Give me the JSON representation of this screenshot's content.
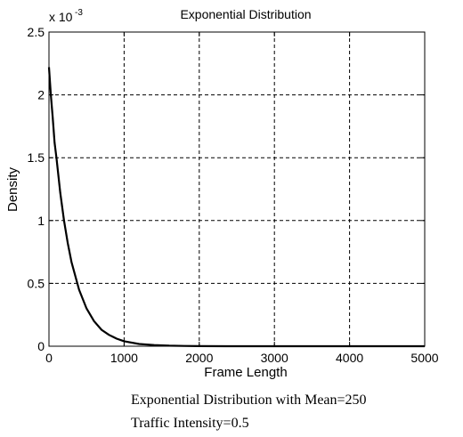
{
  "chart_data": {
    "type": "line",
    "title": "Exponential Distribution",
    "xlabel": "Frame Length",
    "ylabel": "Density",
    "xlim": [
      0,
      5000
    ],
    "ylim": [
      0,
      2.5
    ],
    "y_multiplier_text": "x 10",
    "y_multiplier_exponent": "-3",
    "xticks": [
      0,
      1000,
      2000,
      3000,
      4000,
      5000
    ],
    "xtick_labels": [
      "0",
      "1000",
      "2000",
      "3000",
      "4000",
      "5000"
    ],
    "yticks": [
      0,
      0.5,
      1,
      1.5,
      2,
      2.5
    ],
    "ytick_labels": [
      "0",
      "0.5",
      "1",
      "1.5",
      "2",
      "2.5"
    ],
    "grid": true,
    "series": [
      {
        "color": "#000000",
        "x": [
          0,
          25,
          50,
          75,
          100,
          150,
          200,
          250,
          300,
          400,
          500,
          600,
          700,
          800,
          900,
          1000,
          1200,
          1400,
          1600,
          1800,
          2000,
          2500,
          3000,
          4000,
          5000
        ],
        "y": [
          2.22,
          2.0,
          1.82,
          1.62,
          1.5,
          1.22,
          1.0,
          0.82,
          0.67,
          0.45,
          0.3,
          0.2,
          0.13,
          0.09,
          0.06,
          0.04,
          0.018,
          0.009,
          0.004,
          0.002,
          0.001,
          0.0,
          0.0,
          0.0,
          0.0
        ]
      }
    ]
  },
  "caption": {
    "line1": "Exponential Distribution with Mean=250",
    "line2": "Traffic Intensity=0.5"
  }
}
